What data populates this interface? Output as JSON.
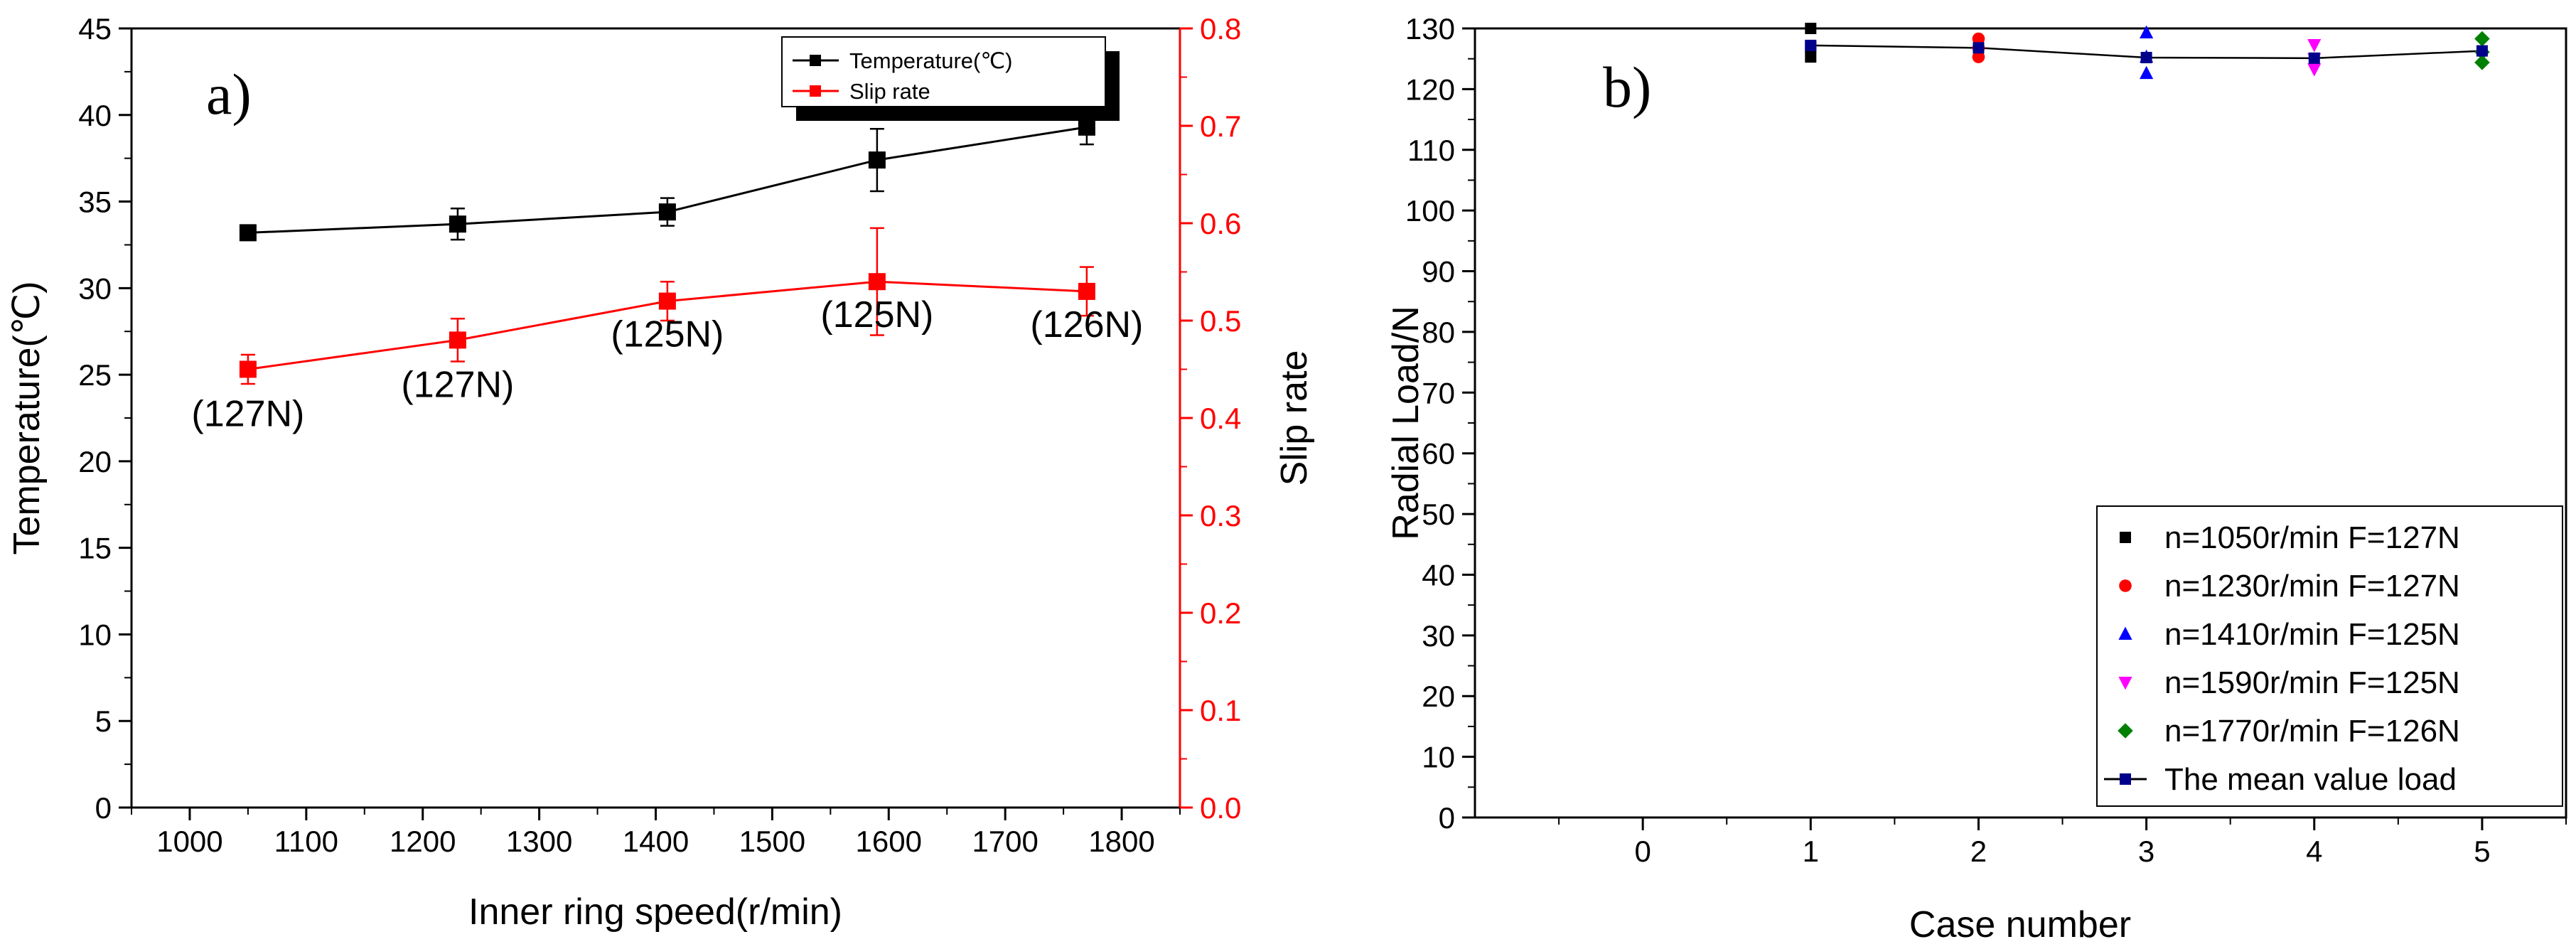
{
  "chart_data": [
    {
      "type": "line",
      "panel_label": "a)",
      "xlabel": "Inner ring speed(r/min)",
      "ylabel": "Temperature(℃)",
      "y2label": "Slip rate",
      "xlim": [
        950,
        1850
      ],
      "ylim": [
        0,
        45
      ],
      "y2lim": [
        0.0,
        0.8
      ],
      "x_ticks": [
        1000,
        1100,
        1200,
        1300,
        1400,
        1500,
        1600,
        1700,
        1800
      ],
      "x_tick_labels": [
        "1000",
        "1100",
        "1200",
        "1300",
        "1400",
        "1500",
        "1600",
        "1700",
        "1800"
      ],
      "y_ticks": [
        0,
        5,
        10,
        15,
        20,
        25,
        30,
        35,
        40,
        45
      ],
      "y_tick_labels": [
        "0",
        "5",
        "10",
        "15",
        "20",
        "25",
        "30",
        "35",
        "40",
        "45"
      ],
      "y2_ticks": [
        0.0,
        0.1,
        0.2,
        0.3,
        0.4,
        0.5,
        0.6,
        0.7,
        0.8
      ],
      "y2_tick_labels": [
        "0.0",
        "0.1",
        "0.2",
        "0.3",
        "0.4",
        "0.5",
        "0.6",
        "0.7",
        "0.8"
      ],
      "series": [
        {
          "name": "Temperature(℃)",
          "axis": "left",
          "color": "#000000",
          "x": [
            1050,
            1230,
            1410,
            1590,
            1770
          ],
          "y": [
            33.2,
            33.7,
            34.4,
            37.4,
            39.3
          ],
          "err": [
            0,
            0.9,
            0.8,
            1.8,
            1.0
          ]
        },
        {
          "name": "Slip rate",
          "axis": "right",
          "color": "#ff0000",
          "x": [
            1050,
            1230,
            1410,
            1590,
            1770
          ],
          "y": [
            0.45,
            0.48,
            0.52,
            0.54,
            0.53
          ],
          "err": [
            0.015,
            0.022,
            0.02,
            0.055,
            0.025
          ]
        }
      ],
      "annotations": [
        {
          "text": "(127N)",
          "x": 1050
        },
        {
          "text": "(127N)",
          "x": 1230
        },
        {
          "text": "(125N)",
          "x": 1410
        },
        {
          "text": "(125N)",
          "x": 1590
        },
        {
          "text": "(126N)",
          "x": 1770
        }
      ]
    },
    {
      "type": "scatter",
      "panel_label": "b)",
      "xlabel": "Case number",
      "ylabel": "Radial Load/N",
      "xlim": [
        -1,
        5.5
      ],
      "ylim": [
        0,
        130
      ],
      "x_ticks": [
        0,
        1,
        2,
        3,
        4,
        5
      ],
      "x_tick_labels": [
        "0",
        "1",
        "2",
        "3",
        "4",
        "5"
      ],
      "y_ticks": [
        0,
        10,
        20,
        30,
        40,
        50,
        60,
        70,
        80,
        90,
        100,
        110,
        120,
        130
      ],
      "y_tick_labels": [
        "0",
        "10",
        "20",
        "30",
        "40",
        "50",
        "60",
        "70",
        "80",
        "90",
        "100",
        "110",
        "120",
        "130"
      ],
      "legend_position": "bottom-right",
      "series": [
        {
          "name": "n=1050r/min F=127N",
          "marker": "square",
          "color": "#000000",
          "x": [
            1,
            1,
            1
          ],
          "y": [
            130,
            127,
            125.3
          ]
        },
        {
          "name": "n=1230r/min F=127N",
          "marker": "circle",
          "color": "#ff0000",
          "x": [
            2,
            2,
            2
          ],
          "y": [
            128.3,
            126.8,
            125.3
          ]
        },
        {
          "name": "n=1410r/min F=125N",
          "marker": "triangle-up",
          "color": "#0000ff",
          "x": [
            3,
            3,
            3
          ],
          "y": [
            129.3,
            125.3,
            122.6
          ]
        },
        {
          "name": "n=1590r/min F=125N",
          "marker": "triangle-down",
          "color": "#ff00ff",
          "x": [
            4,
            4,
            4
          ],
          "y": [
            127.3,
            125,
            123.3
          ]
        },
        {
          "name": "n=1770r/min F=126N",
          "marker": "diamond",
          "color": "#008000",
          "x": [
            5,
            5,
            5
          ],
          "y": [
            128.3,
            126.1,
            124.4
          ]
        },
        {
          "name": "The mean value load",
          "marker": "square-line",
          "color": "#00008b",
          "x": [
            1,
            2,
            3,
            4,
            5
          ],
          "y": [
            127.2,
            126.8,
            125.2,
            125.1,
            126.3
          ]
        }
      ]
    }
  ]
}
